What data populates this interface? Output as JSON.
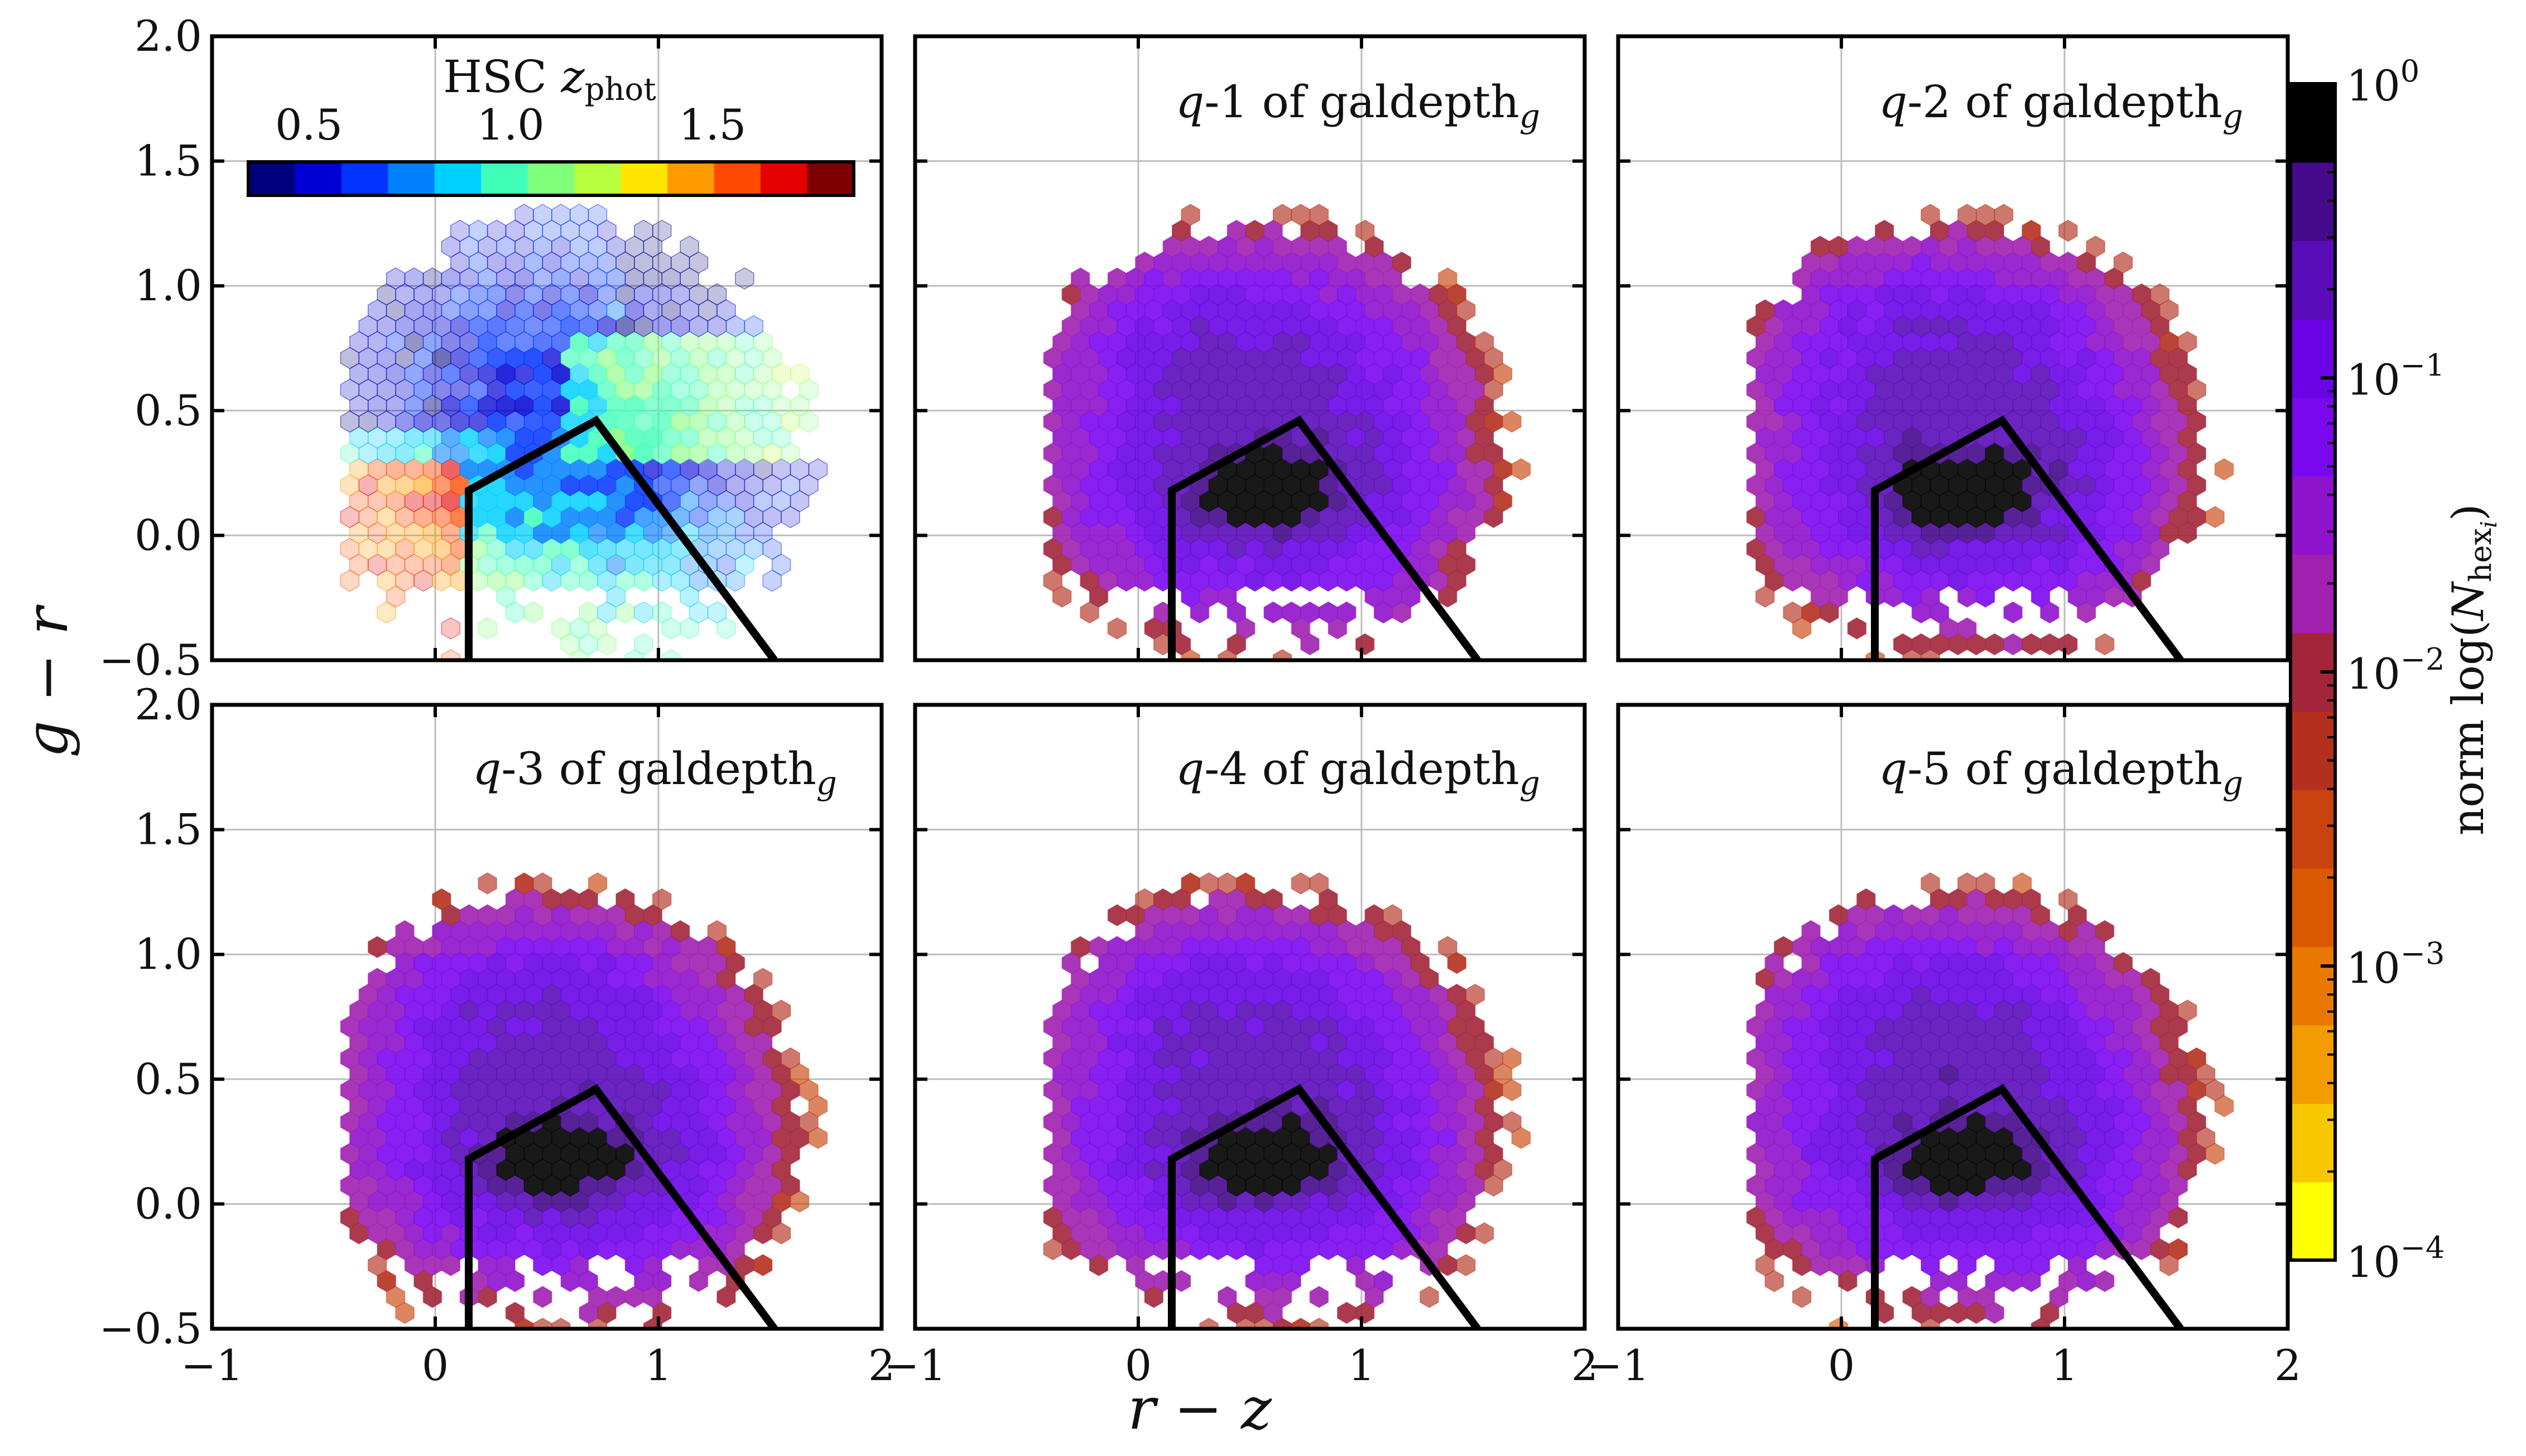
{
  "figure": {
    "xlabel": "r − z",
    "ylabel": "g − r"
  },
  "chart_data": {
    "type": "heatmap",
    "subtype": "hexbin grid, 2x3 panels",
    "xlim": [
      -1,
      2
    ],
    "ylim": [
      -0.5,
      2.0
    ],
    "x_ticks": [
      -1,
      0,
      1,
      2
    ],
    "x_tick_labels": [
      "−1",
      "0",
      "1",
      "2"
    ],
    "y_ticks": [
      -0.5,
      0.0,
      0.5,
      1.0,
      1.5,
      2.0
    ],
    "y_tick_labels": [
      "−0.5",
      "0.0",
      "0.5",
      "1.0",
      "1.5",
      "2.0"
    ],
    "grid": true,
    "selection_box": {
      "vertices": [
        [
          0.15,
          -0.5
        ],
        [
          0.15,
          0.18
        ],
        [
          0.72,
          0.46
        ],
        [
          1.52,
          -0.5
        ]
      ]
    },
    "panels": [
      {
        "name": "hsc-zphot",
        "title": "",
        "colormap": "redshift"
      },
      {
        "name": "q1",
        "title_prefix": "q",
        "title_main": "-1 of galdepth",
        "title_sub": "g",
        "colormap": "density"
      },
      {
        "name": "q2",
        "title_prefix": "q",
        "title_main": "-2 of galdepth",
        "title_sub": "g",
        "colormap": "density"
      },
      {
        "name": "q3",
        "title_prefix": "q",
        "title_main": "-3 of galdepth",
        "title_sub": "g",
        "colormap": "density"
      },
      {
        "name": "q4",
        "title_prefix": "q",
        "title_main": "-4 of galdepth",
        "title_sub": "g",
        "colormap": "density"
      },
      {
        "name": "q5",
        "title_prefix": "q",
        "title_main": "-5 of galdepth",
        "title_sub": "g",
        "colormap": "density"
      }
    ],
    "redshift_colorbar": {
      "label_main": "HSC ",
      "label_var": "z",
      "label_sub": "phot",
      "range": [
        0.35,
        1.85
      ],
      "ticks": [
        0.5,
        1.0,
        1.5
      ],
      "tick_labels": [
        "0.5",
        "1.0",
        "1.5"
      ],
      "colors": [
        "#00007f",
        "#0000d4",
        "#0033ff",
        "#0080ff",
        "#00d0ff",
        "#3fffb8",
        "#7fff7a",
        "#b8ff3f",
        "#ffe500",
        "#ff9900",
        "#ff4a00",
        "#e40000",
        "#7f0000"
      ]
    },
    "density_colorbar": {
      "label_prefix": "norm log(",
      "label_var": "N",
      "label_sub": "hex",
      "label_subsub": "i",
      "label_suffix": ")",
      "log_range": [
        -4,
        0
      ],
      "tick_exponents": [
        0,
        -1,
        -2,
        -3,
        -4
      ],
      "tick_base": "10",
      "tick_exp_labels": [
        "0",
        "−1",
        "−2",
        "−3",
        "−4"
      ],
      "colors": [
        "#ffff00",
        "#f7c700",
        "#f29c00",
        "#e87800",
        "#da5800",
        "#c8430d",
        "#b4301e",
        "#a3253a",
        "#a020b0",
        "#8f12cc",
        "#7a08ee",
        "#6a04e6",
        "#5a0cb8",
        "#460a8c",
        "#000000"
      ]
    }
  }
}
